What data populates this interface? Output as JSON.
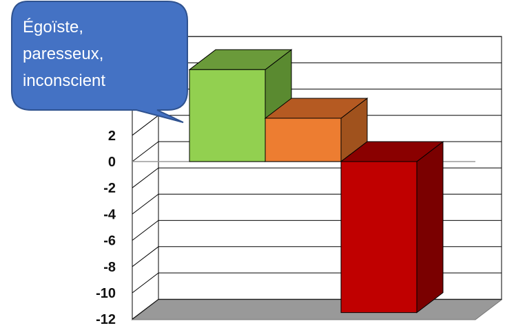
{
  "chart_data": {
    "type": "bar",
    "three_d": true,
    "categories": [
      "",
      "",
      ""
    ],
    "values": [
      7,
      3.3,
      -11.5
    ],
    "colors": [
      {
        "front": "#92d050",
        "top": "#6a9a3a",
        "side": "#5a8a30"
      },
      {
        "front": "#ed7d31",
        "top": "#b55a22",
        "side": "#a0521d"
      },
      {
        "front": "#c00000",
        "top": "#8a0000",
        "side": "#7a0000"
      }
    ],
    "ylim": [
      -12,
      10
    ],
    "yticks": [
      "2",
      "0",
      "-2",
      "-4",
      "-6",
      "-8",
      "-10",
      "-12"
    ],
    "ytick_values": [
      2,
      0,
      -2,
      -4,
      -6,
      -8,
      -10,
      -12
    ],
    "grid": true,
    "annotation": {
      "lines": [
        "Égoïste,",
        "paresseux,",
        "inconscient"
      ],
      "color": "#4472c4"
    }
  }
}
